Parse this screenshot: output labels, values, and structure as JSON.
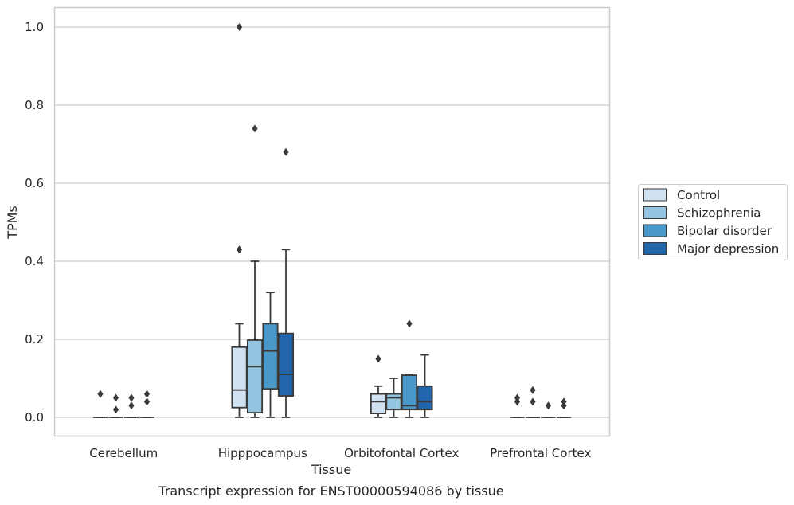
{
  "caption": "Transcript expression for ENST00000594086 by tissue",
  "chart_data": {
    "type": "box",
    "title": "",
    "xlabel": "Tissue",
    "ylabel": "TPMs",
    "categories": [
      "Cerebellum",
      "Hipppocampus",
      "Orbitofontal Cortex",
      "Prefrontal Cortex"
    ],
    "ylim": [
      -0.05,
      1.05
    ],
    "yticks": [
      0.0,
      0.2,
      0.4,
      0.6,
      0.8,
      1.0
    ],
    "ytick_labels": [
      "0.0",
      "0.2",
      "0.4",
      "0.6",
      "0.8",
      "1.0"
    ],
    "grid": true,
    "legend_position": "right",
    "series": [
      {
        "name": "Control",
        "color": "#d0e1f2",
        "boxes": [
          {
            "min": 0,
            "q1": 0,
            "median": 0,
            "q3": 0,
            "max": 0,
            "outliers": [
              0.06
            ]
          },
          {
            "min": 0,
            "q1": 0.025,
            "median": 0.07,
            "q3": 0.18,
            "max": 0.24,
            "outliers": [
              0.43,
              1.0
            ]
          },
          {
            "min": 0,
            "q1": 0.01,
            "median": 0.04,
            "q3": 0.06,
            "max": 0.08,
            "outliers": [
              0.15
            ]
          },
          {
            "min": 0,
            "q1": 0,
            "median": 0,
            "q3": 0,
            "max": 0,
            "outliers": [
              0.04,
              0.05
            ]
          }
        ]
      },
      {
        "name": "Schizophrenia",
        "color": "#94c4df",
        "boxes": [
          {
            "min": 0,
            "q1": 0,
            "median": 0,
            "q3": 0,
            "max": 0,
            "outliers": [
              0.02,
              0.05
            ]
          },
          {
            "min": 0,
            "q1": 0.012,
            "median": 0.13,
            "q3": 0.198,
            "max": 0.4,
            "outliers": [
              0.74
            ]
          },
          {
            "min": 0,
            "q1": 0.02,
            "median": 0.05,
            "q3": 0.06,
            "max": 0.1,
            "outliers": []
          },
          {
            "min": 0,
            "q1": 0,
            "median": 0,
            "q3": 0,
            "max": 0,
            "outliers": [
              0.04,
              0.07
            ]
          }
        ]
      },
      {
        "name": "Bipolar disorder",
        "color": "#4a98c9",
        "boxes": [
          {
            "min": 0,
            "q1": 0,
            "median": 0,
            "q3": 0,
            "max": 0,
            "outliers": [
              0.03,
              0.05
            ]
          },
          {
            "min": 0,
            "q1": 0.073,
            "median": 0.17,
            "q3": 0.24,
            "max": 0.32,
            "outliers": []
          },
          {
            "min": 0,
            "q1": 0.02,
            "median": 0.03,
            "q3": 0.108,
            "max": 0.11,
            "outliers": [
              0.24
            ]
          },
          {
            "min": 0,
            "q1": 0,
            "median": 0,
            "q3": 0,
            "max": 0,
            "outliers": [
              0.03
            ]
          }
        ]
      },
      {
        "name": "Major depression",
        "color": "#2166ac",
        "boxes": [
          {
            "min": 0,
            "q1": 0,
            "median": 0,
            "q3": 0,
            "max": 0,
            "outliers": [
              0.04,
              0.06
            ]
          },
          {
            "min": 0,
            "q1": 0.055,
            "median": 0.11,
            "q3": 0.215,
            "max": 0.43,
            "outliers": [
              0.68
            ]
          },
          {
            "min": 0,
            "q1": 0.02,
            "median": 0.04,
            "q3": 0.08,
            "max": 0.16,
            "outliers": []
          },
          {
            "min": 0,
            "q1": 0,
            "median": 0,
            "q3": 0,
            "max": 0,
            "outliers": [
              0.03,
              0.04
            ]
          }
        ]
      }
    ]
  }
}
